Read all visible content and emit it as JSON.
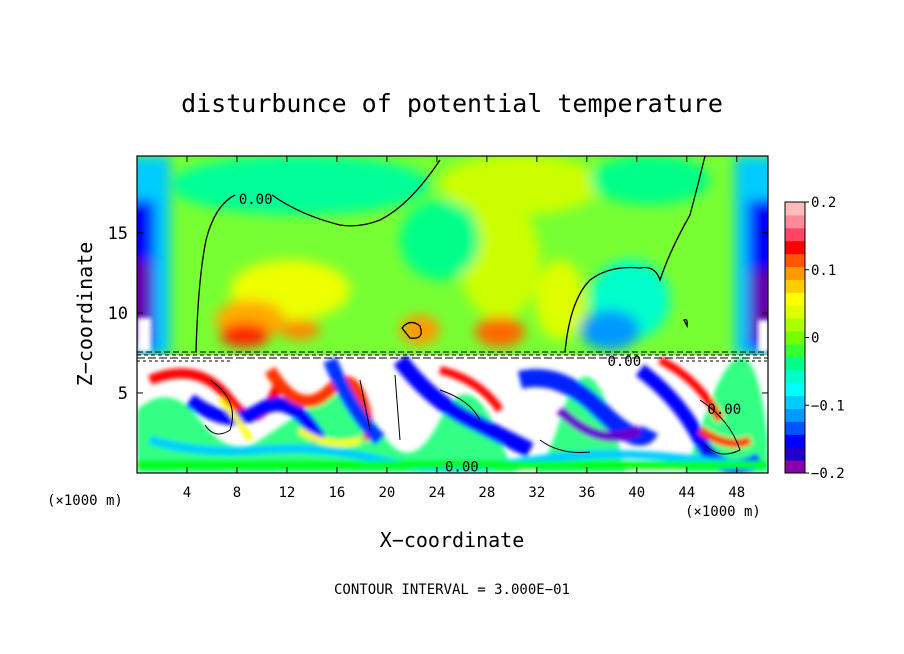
{
  "chart_data": {
    "type": "heatmap",
    "title": "disturbunce of potential temperature",
    "xlabel": "X−coordinate",
    "ylabel": "Z−coordinate",
    "x_unit_left": "(×1000 m)",
    "x_unit_right": "(×1000 m)",
    "xlim": [
      0,
      50.5
    ],
    "ylim": [
      0,
      19.8
    ],
    "x_ticks": [
      4,
      8,
      12,
      16,
      20,
      24,
      28,
      32,
      36,
      40,
      44,
      48
    ],
    "x_tick_labels": [
      "4",
      "8",
      "12",
      "16",
      "20",
      "24",
      "28",
      "32",
      "36",
      "40",
      "44",
      "48"
    ],
    "y_ticks": [
      5,
      10,
      15
    ],
    "y_tick_labels": [
      "5",
      "10",
      "15"
    ],
    "footnote": "CONTOUR INTERVAL = 3.000E−01",
    "contour_labels": [
      {
        "text": "0.00",
        "x": 9.5,
        "y": 17.1
      },
      {
        "text": "0.00",
        "x": 39.0,
        "y": 7.0
      },
      {
        "text": "0.00",
        "x": 47.0,
        "y": 4.0
      },
      {
        "text": "0.00",
        "x": 26.0,
        "y": 0.4
      }
    ],
    "colorbar": {
      "min": -0.2,
      "max": 0.2,
      "tick_values": [
        0.2,
        0.1,
        0,
        -0.1,
        -0.2
      ],
      "tick_labels": [
        "0.2",
        "0.1",
        "0",
        "−0.1",
        "−0.2"
      ],
      "colors": [
        "#8800aa",
        "#2200cc",
        "#0000ff",
        "#0055ff",
        "#0099ff",
        "#00ccff",
        "#00ffff",
        "#00ffcc",
        "#00ff88",
        "#33ff33",
        "#77ff00",
        "#aaff00",
        "#ddff00",
        "#ffff00",
        "#ffcc00",
        "#ff9900",
        "#ff5500",
        "#ff0000",
        "#ff4466",
        "#ff8899",
        "#ffbbbb"
      ]
    },
    "fields": {
      "upper_layer_mean": 0.05,
      "top_left_value": -0.2,
      "top_right_value": -0.2,
      "warm_patches_x": [
        8,
        12,
        21,
        28
      ],
      "cold_patch_x": 38
    }
  }
}
